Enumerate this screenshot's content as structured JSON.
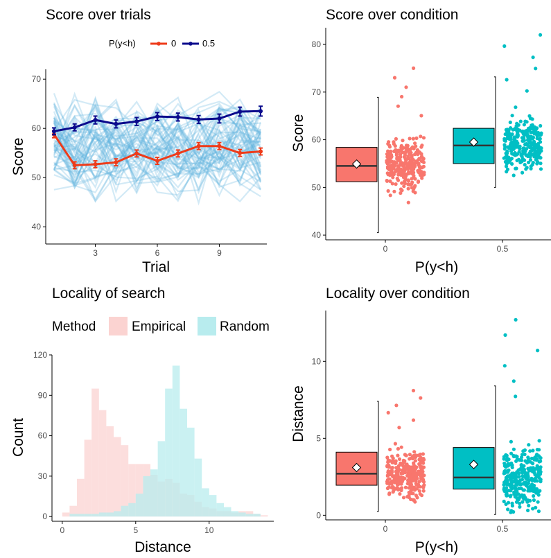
{
  "colors": {
    "red": "#ee3b1a",
    "navy": "#0a0a8c",
    "trial_lines": "#62b4e0",
    "box_red": "#f8766d",
    "box_teal": "#00bfc4",
    "empirical_fill": "#fbd3d1",
    "random_fill": "#b8ecee",
    "axis": "#000000",
    "tick_text": "#4d4d4d"
  },
  "chart_data": [
    {
      "id": "score-over-trials",
      "type": "line",
      "title": "Score over trials",
      "xlabel": "Trial",
      "ylabel": "Score",
      "xlim": [
        0.6,
        11.3
      ],
      "ylim": [
        36.5,
        72
      ],
      "xticks": [
        3,
        6,
        9
      ],
      "yticks": [
        40,
        50,
        60,
        70
      ],
      "legend": {
        "title": "P(y<h)",
        "position": "top",
        "labels": [
          "0",
          "0.5"
        ]
      },
      "background_lines": {
        "count": 60,
        "color_key": "trial_lines"
      },
      "series": [
        {
          "name": "0",
          "color_key": "red",
          "x": [
            1,
            2,
            3,
            4,
            5,
            6,
            7,
            8,
            9,
            10,
            11
          ],
          "values": [
            58.8,
            52.5,
            52.7,
            53.1,
            54.9,
            53.4,
            54.9,
            56.4,
            56.4,
            55.0,
            55.3
          ],
          "error": [
            0.7,
            0.7,
            0.7,
            0.7,
            0.7,
            0.7,
            0.7,
            0.7,
            0.7,
            0.7,
            0.7
          ]
        },
        {
          "name": "0.5",
          "color_key": "navy",
          "x": [
            1,
            2,
            3,
            4,
            5,
            6,
            7,
            8,
            9,
            10,
            11
          ],
          "values": [
            59.4,
            60.2,
            61.7,
            60.9,
            61.4,
            62.4,
            62.3,
            61.8,
            62.0,
            63.4,
            63.5
          ],
          "error": [
            0.7,
            0.7,
            0.8,
            0.8,
            0.8,
            0.8,
            0.8,
            0.8,
            0.9,
            0.9,
            1.0
          ]
        }
      ]
    },
    {
      "id": "score-over-condition",
      "type": "box",
      "title": "Score over condition",
      "xlabel": "P(y<h)",
      "ylabel": "Score",
      "categories": [
        "0",
        "0.5"
      ],
      "ylim": [
        39,
        83.5
      ],
      "yticks": [
        40,
        50,
        60,
        70,
        80
      ],
      "groups": [
        {
          "category": "0",
          "color_key": "box_red",
          "q1": 51.2,
          "median": 54.5,
          "q3": 58.4,
          "mean": 54.9,
          "whisker_low": 40.5,
          "whisker_high": 68.9,
          "points_n": 300,
          "points_min": 40.4,
          "points_max": 75.0
        },
        {
          "category": "0.5",
          "color_key": "box_teal",
          "q1": 55.0,
          "median": 58.8,
          "q3": 62.4,
          "mean": 59.5,
          "whisker_low": 50.0,
          "whisker_high": 73.2,
          "points_n": 300,
          "points_min": 50.0,
          "points_max": 82.0
        }
      ]
    },
    {
      "id": "locality-of-search",
      "type": "histogram",
      "title": "Locality of search",
      "xlabel": "Distance",
      "ylabel": "Count",
      "xlim": [
        -0.7,
        14.4
      ],
      "ylim": [
        -3.5,
        120
      ],
      "xticks": [
        0,
        5,
        10
      ],
      "yticks": [
        0,
        30,
        60,
        90,
        120
      ],
      "legend": {
        "title": "Method",
        "position": "top",
        "labels": [
          "Empirical",
          "Random"
        ]
      },
      "bin_width": 0.5,
      "series": [
        {
          "name": "Empirical",
          "color_key": "empirical_fill",
          "bin_start": 0,
          "counts": [
            3,
            8,
            28,
            57,
            95,
            79,
            67,
            59,
            53,
            39,
            39,
            39,
            31,
            26,
            28,
            25,
            17,
            16,
            11,
            7,
            6,
            4,
            4,
            3,
            4,
            4,
            2,
            1
          ]
        },
        {
          "name": "Random",
          "color_key": "random_fill",
          "bin_start": 0.5,
          "counts": [
            2,
            2,
            2,
            2,
            3,
            3,
            4,
            8,
            10,
            17,
            30,
            35,
            56,
            95,
            112,
            80,
            66,
            43,
            21,
            16,
            10,
            7,
            4,
            3,
            2,
            2
          ]
        }
      ]
    },
    {
      "id": "locality-over-condition",
      "type": "box",
      "title": "Locality over condition",
      "xlabel": "P(y<h)",
      "ylabel": "Distance",
      "categories": [
        "0",
        "0.5"
      ],
      "ylim": [
        -0.3,
        13.3
      ],
      "yticks": [
        0,
        5,
        10
      ],
      "groups": [
        {
          "category": "0",
          "color_key": "box_red",
          "q1": 1.95,
          "median": 2.7,
          "q3": 4.1,
          "mean": 3.1,
          "whisker_low": 0.25,
          "whisker_high": 7.4,
          "points_n": 300,
          "points_min": 0.2,
          "points_max": 8.1
        },
        {
          "category": "0.5",
          "color_key": "box_teal",
          "q1": 1.7,
          "median": 2.45,
          "q3": 4.4,
          "mean": 3.3,
          "whisker_low": 0.05,
          "whisker_high": 8.4,
          "points_n": 300,
          "points_min": 0.0,
          "points_max": 12.7
        }
      ]
    }
  ]
}
